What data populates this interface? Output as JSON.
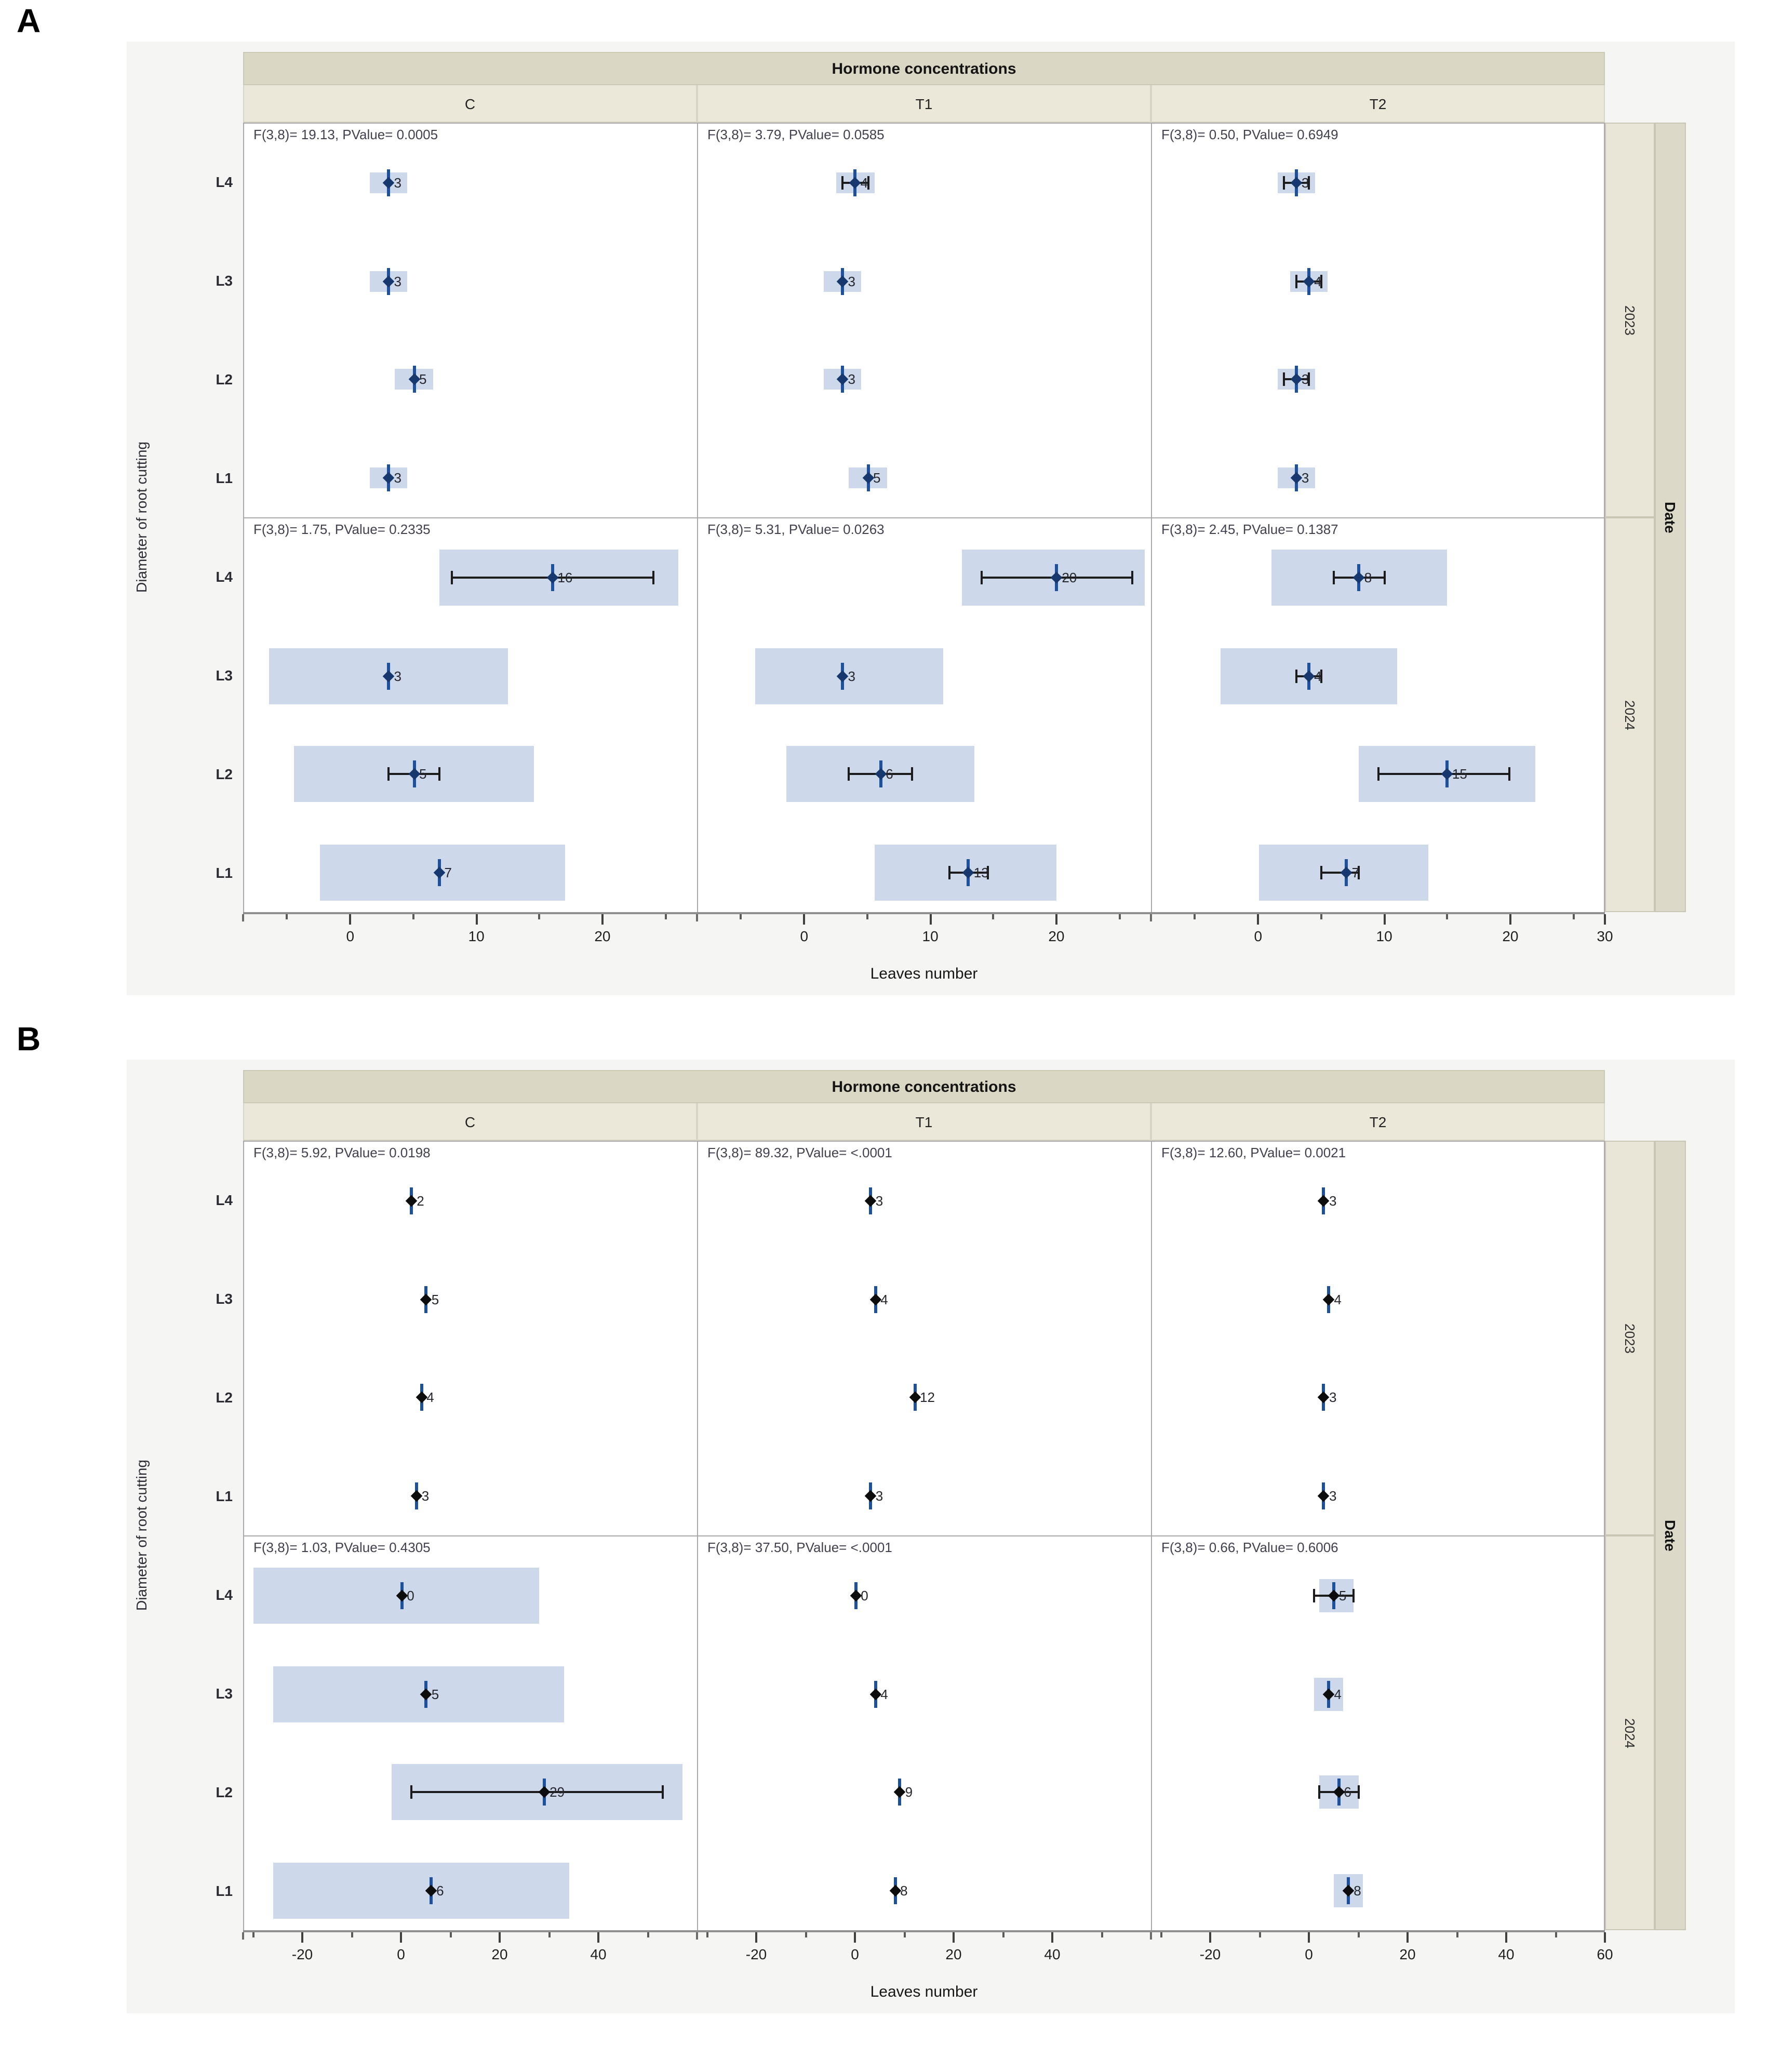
{
  "page": {
    "panel_letters": [
      "A",
      "B"
    ]
  },
  "chart_data": [
    {
      "type": "scatter",
      "subtype": "faceted-mean-ci-interval-plot",
      "title": "Hormone concentrations",
      "xlabel": "Leaves number",
      "ylabel": "Diameter of root cutting",
      "row_group_label": "Date",
      "columns": [
        "C",
        "T1",
        "T2"
      ],
      "rows": [
        "2023",
        "2024"
      ],
      "levels": [
        "L4",
        "L3",
        "L2",
        "L1"
      ],
      "xlim": [
        -8.5,
        27.5
      ],
      "xticks": [
        0,
        10,
        20
      ],
      "xtick_last": 30,
      "minor_ticks": [
        -5,
        5,
        15,
        25
      ],
      "grid": false,
      "legend_position": "none",
      "marker_color": "#16386e",
      "line_color": "#1d509f",
      "band_color": "#cdd8ea",
      "facets": [
        {
          "column": "C",
          "row": "2023",
          "annotation": "F(3,8)= 19.13, PValue= 0.0005",
          "points": [
            {
              "level": "L4",
              "value": 3,
              "label": "3",
              "band": [
                1.5,
                4.5
              ],
              "band_size": "small",
              "whisker": null
            },
            {
              "level": "L3",
              "value": 3,
              "label": "3",
              "band": [
                1.5,
                4.5
              ],
              "band_size": "small",
              "whisker": null
            },
            {
              "level": "L2",
              "value": 5,
              "label": "5",
              "band": [
                3.5,
                6.5
              ],
              "band_size": "small",
              "whisker": null
            },
            {
              "level": "L1",
              "value": 3,
              "label": "3",
              "band": [
                1.5,
                4.5
              ],
              "band_size": "small",
              "whisker": null
            }
          ]
        },
        {
          "column": "T1",
          "row": "2023",
          "annotation": "F(3,8)= 3.79, PValue= 0.0585",
          "points": [
            {
              "level": "L4",
              "value": 4,
              "label": "4",
              "band": [
                2.5,
                5.5
              ],
              "band_size": "small",
              "whisker": [
                3,
                5
              ]
            },
            {
              "level": "L3",
              "value": 3,
              "label": "3",
              "band": [
                1.5,
                4.5
              ],
              "band_size": "small",
              "whisker": null
            },
            {
              "level": "L2",
              "value": 3,
              "label": "3",
              "band": [
                1.5,
                4.5
              ],
              "band_size": "small",
              "whisker": null
            },
            {
              "level": "L1",
              "value": 5,
              "label": "5",
              "band": [
                3.5,
                6.5
              ],
              "band_size": "small",
              "whisker": null
            }
          ]
        },
        {
          "column": "T2",
          "row": "2023",
          "annotation": "F(3,8)= 0.50, PValue= 0.6949",
          "points": [
            {
              "level": "L4",
              "value": 3,
              "label": "3",
              "band": [
                1.5,
                4.5
              ],
              "band_size": "small",
              "whisker": [
                2,
                4
              ]
            },
            {
              "level": "L3",
              "value": 4,
              "label": "4",
              "band": [
                2.5,
                5.5
              ],
              "band_size": "small",
              "whisker": [
                3,
                5
              ]
            },
            {
              "level": "L2",
              "value": 3,
              "label": "3",
              "band": [
                1.5,
                4.5
              ],
              "band_size": "small",
              "whisker": [
                2,
                4
              ]
            },
            {
              "level": "L1",
              "value": 3,
              "label": "3",
              "band": [
                1.5,
                4.5
              ],
              "band_size": "small",
              "whisker": null
            }
          ]
        },
        {
          "column": "C",
          "row": "2024",
          "annotation": "F(3,8)= 1.75, PValue= 0.2335",
          "points": [
            {
              "level": "L4",
              "value": 16,
              "label": "16",
              "band": [
                7,
                26
              ],
              "band_size": "big",
              "whisker": [
                8,
                24
              ]
            },
            {
              "level": "L3",
              "value": 3,
              "label": "3",
              "band": [
                -6.5,
                12.5
              ],
              "band_size": "big",
              "whisker": null
            },
            {
              "level": "L2",
              "value": 5,
              "label": "5",
              "band": [
                -4.5,
                14.5
              ],
              "band_size": "big",
              "whisker": [
                3,
                7
              ]
            },
            {
              "level": "L1",
              "value": 7,
              "label": "7",
              "band": [
                -2.5,
                17
              ],
              "band_size": "big",
              "whisker": null
            }
          ]
        },
        {
          "column": "T1",
          "row": "2024",
          "annotation": "F(3,8)= 5.31, PValue= 0.0263",
          "points": [
            {
              "level": "L4",
              "value": 20,
              "label": "20",
              "band": [
                12.5,
                27
              ],
              "band_size": "big",
              "whisker": [
                14,
                26
              ]
            },
            {
              "level": "L3",
              "value": 3,
              "label": "3",
              "band": [
                -4,
                11
              ],
              "band_size": "big",
              "whisker": null
            },
            {
              "level": "L2",
              "value": 6,
              "label": "6",
              "band": [
                -1.5,
                13.5
              ],
              "band_size": "big",
              "whisker": [
                3.5,
                8.5
              ]
            },
            {
              "level": "L1",
              "value": 13,
              "label": "13",
              "band": [
                5.5,
                20
              ],
              "band_size": "big",
              "whisker": [
                11.5,
                14.5
              ]
            }
          ]
        },
        {
          "column": "T2",
          "row": "2024",
          "annotation": "F(3,8)= 2.45, PValue= 0.1387",
          "points": [
            {
              "level": "L4",
              "value": 8,
              "label": "8",
              "band": [
                1,
                15
              ],
              "band_size": "big",
              "whisker": [
                6,
                10
              ]
            },
            {
              "level": "L3",
              "value": 4,
              "label": "4",
              "band": [
                -3,
                11
              ],
              "band_size": "big",
              "whisker": [
                3,
                5
              ]
            },
            {
              "level": "L2",
              "value": 15,
              "label": "15",
              "band": [
                8,
                22
              ],
              "band_size": "big",
              "whisker": [
                9.5,
                20
              ]
            },
            {
              "level": "L1",
              "value": 7,
              "label": "7",
              "band": [
                0,
                13.5
              ],
              "band_size": "big",
              "whisker": [
                5,
                8
              ]
            }
          ]
        }
      ]
    },
    {
      "type": "scatter",
      "subtype": "faceted-mean-ci-interval-plot",
      "title": "Hormone concentrations",
      "xlabel": "Leaves number",
      "ylabel": "Diameter of root cutting",
      "row_group_label": "Date",
      "columns": [
        "C",
        "T1",
        "T2"
      ],
      "rows": [
        "2023",
        "2024"
      ],
      "levels": [
        "L4",
        "L3",
        "L2",
        "L1"
      ],
      "xlim": [
        -32,
        60
      ],
      "xticks": [
        -20,
        0,
        20,
        40
      ],
      "xtick_last": 60,
      "minor_ticks": [
        -30,
        -10,
        10,
        30,
        50
      ],
      "grid": false,
      "legend_position": "none",
      "marker_color": "#0d0d0d",
      "line_color": "#1d509f",
      "band_color": "#cdd8ea",
      "facets": [
        {
          "column": "C",
          "row": "2023",
          "annotation": "F(3,8)= 5.92, PValue= 0.0198",
          "points": [
            {
              "level": "L4",
              "value": 2,
              "label": "2",
              "band": null,
              "band_size": null,
              "whisker": null
            },
            {
              "level": "L3",
              "value": 5,
              "label": "5",
              "band": null,
              "band_size": null,
              "whisker": null
            },
            {
              "level": "L2",
              "value": 4,
              "label": "4",
              "band": null,
              "band_size": null,
              "whisker": null
            },
            {
              "level": "L1",
              "value": 3,
              "label": "3",
              "band": null,
              "band_size": null,
              "whisker": null
            }
          ]
        },
        {
          "column": "T1",
          "row": "2023",
          "annotation": "F(3,8)= 89.32, PValue= <.0001",
          "points": [
            {
              "level": "L4",
              "value": 3,
              "label": "3",
              "band": null,
              "band_size": null,
              "whisker": null
            },
            {
              "level": "L3",
              "value": 4,
              "label": "4",
              "band": null,
              "band_size": null,
              "whisker": null
            },
            {
              "level": "L2",
              "value": 12,
              "label": "12",
              "band": null,
              "band_size": null,
              "whisker": null
            },
            {
              "level": "L1",
              "value": 3,
              "label": "3",
              "band": null,
              "band_size": null,
              "whisker": null
            }
          ]
        },
        {
          "column": "T2",
          "row": "2023",
          "annotation": "F(3,8)= 12.60, PValue= 0.0021",
          "points": [
            {
              "level": "L4",
              "value": 3,
              "label": "3",
              "band": null,
              "band_size": null,
              "whisker": null
            },
            {
              "level": "L3",
              "value": 4,
              "label": "4",
              "band": null,
              "band_size": null,
              "whisker": null
            },
            {
              "level": "L2",
              "value": 3,
              "label": "3",
              "band": null,
              "band_size": null,
              "whisker": null
            },
            {
              "level": "L1",
              "value": 3,
              "label": "3",
              "band": null,
              "band_size": null,
              "whisker": null
            }
          ]
        },
        {
          "column": "C",
          "row": "2024",
          "annotation": "F(3,8)= 1.03, PValue= 0.4305",
          "points": [
            {
              "level": "L4",
              "value": 0,
              "label": "0",
              "band": [
                -30,
                28
              ],
              "band_size": "big",
              "whisker": null
            },
            {
              "level": "L3",
              "value": 5,
              "label": "5",
              "band": [
                -26,
                33
              ],
              "band_size": "big",
              "whisker": null
            },
            {
              "level": "L2",
              "value": 29,
              "label": "29",
              "band": [
                -2,
                57
              ],
              "band_size": "big",
              "whisker": [
                2,
                53
              ]
            },
            {
              "level": "L1",
              "value": 6,
              "label": "6",
              "band": [
                -26,
                34
              ],
              "band_size": "big",
              "whisker": null
            }
          ]
        },
        {
          "column": "T1",
          "row": "2024",
          "annotation": "F(3,8)= 37.50, PValue= <.0001",
          "points": [
            {
              "level": "L4",
              "value": 0,
              "label": "0",
              "band": null,
              "band_size": null,
              "whisker": null
            },
            {
              "level": "L3",
              "value": 4,
              "label": "4",
              "band": null,
              "band_size": null,
              "whisker": null
            },
            {
              "level": "L2",
              "value": 9,
              "label": "9",
              "band": null,
              "band_size": null,
              "whisker": null
            },
            {
              "level": "L1",
              "value": 8,
              "label": "8",
              "band": null,
              "band_size": null,
              "whisker": null
            }
          ]
        },
        {
          "column": "T2",
          "row": "2024",
          "annotation": "F(3,8)= 0.66, PValue= 0.6006",
          "points": [
            {
              "level": "L4",
              "value": 5,
              "label": "5",
              "band": [
                2,
                9
              ],
              "band_size": "medium",
              "whisker": [
                1,
                9
              ]
            },
            {
              "level": "L3",
              "value": 4,
              "label": "4",
              "band": [
                1,
                7
              ],
              "band_size": "medium",
              "whisker": null
            },
            {
              "level": "L2",
              "value": 6,
              "label": "6",
              "band": [
                2,
                10
              ],
              "band_size": "medium",
              "whisker": [
                2,
                10
              ]
            },
            {
              "level": "L1",
              "value": 8,
              "label": "8",
              "band": [
                5,
                11
              ],
              "band_size": "medium",
              "whisker": null
            }
          ]
        }
      ]
    }
  ]
}
